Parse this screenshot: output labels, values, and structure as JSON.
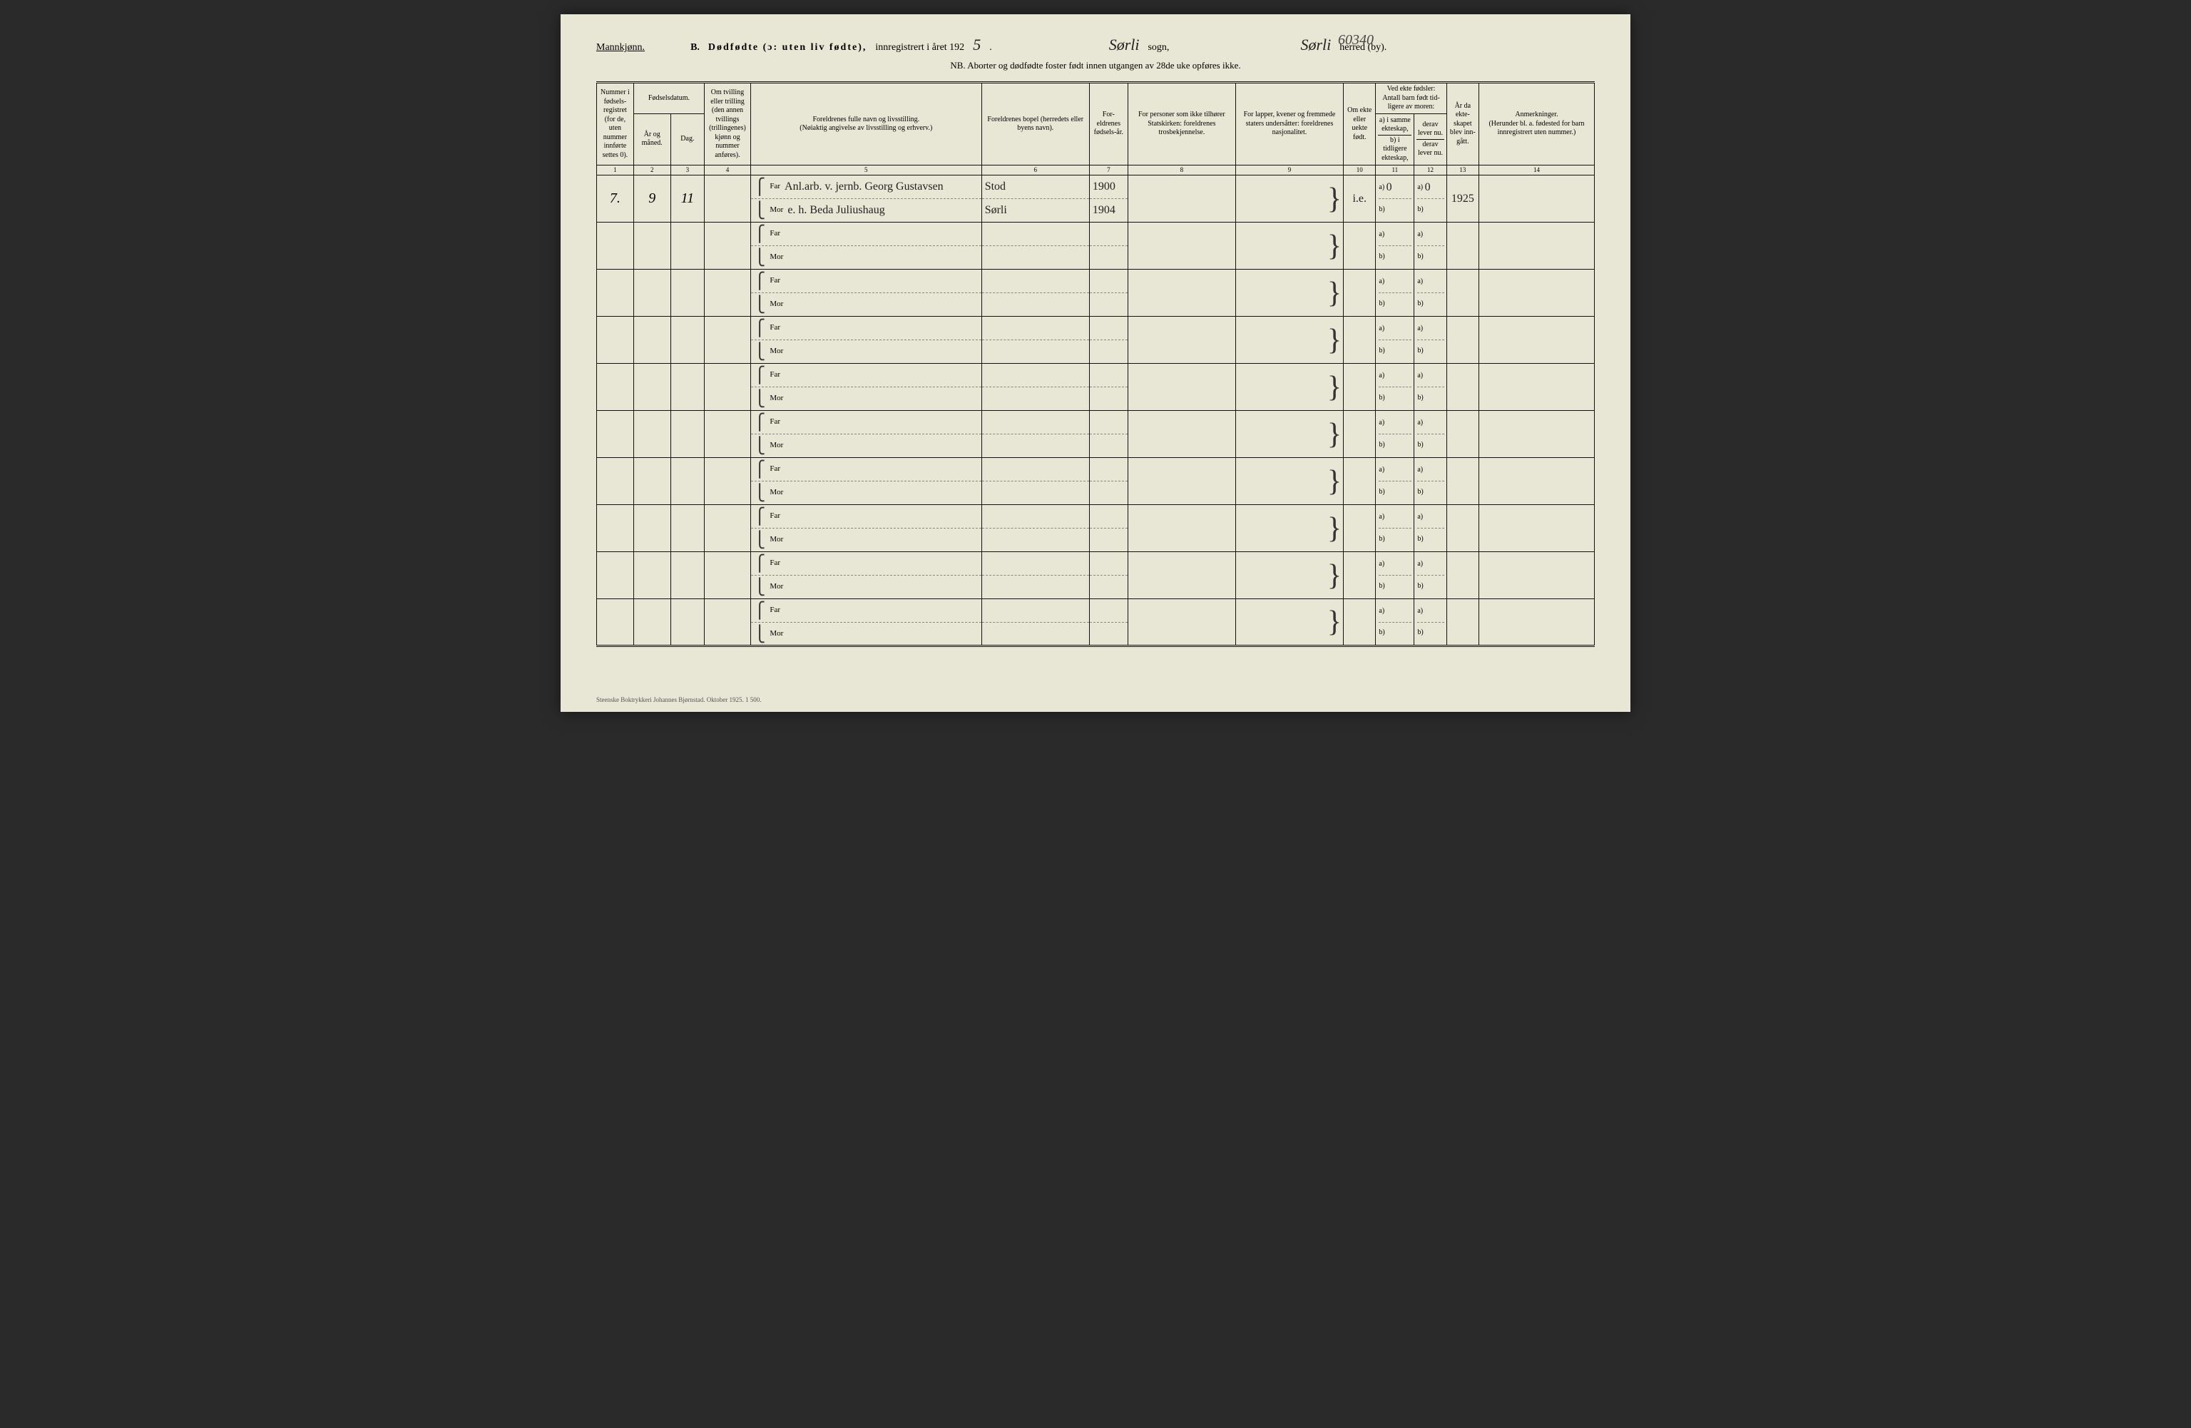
{
  "header": {
    "gender": "Mannkjønn.",
    "section_letter": "B.",
    "title_main": "Dødfødte (ɔ: uten liv fødte),",
    "title_tail": "innregistrert i året 192",
    "year_digit": "5",
    "period": ".",
    "sogn_value": "Sørli",
    "sogn_label": "sogn,",
    "ref_number": "60340",
    "herred_value": "Sørli",
    "herred_label": "herred (by).",
    "nb": "NB.  Aborter og dødfødte foster født innen utgangen av 28de uke opføres ikke."
  },
  "columns": {
    "c1": "Nummer i fødsels-registret (for de, uten nummer innførte settes 0).",
    "c23_top": "Fødselsdatum.",
    "c2": "År og måned.",
    "c3": "Dag.",
    "c4": "Om tvilling eller trilling (den annen tvillings (trillingenes) kjønn og nummer anføres).",
    "c5": "Foreldrenes fulle navn og livsstilling.\n(Nøiaktig angivelse av livsstilling og erhverv.)",
    "c6": "Foreldrenes bopel (herredets eller byens navn).",
    "c7": "For-eldrenes fødsels-år.",
    "c8": "For personer som ikke tilhører Statskirken: foreldrenes trosbekjennelse.",
    "c9": "For lapper, kvener og fremmede staters undersåtter: foreldrenes nasjonalitet.",
    "c10": "Om ekte eller uekte født.",
    "c1112_top": "Ved ekte fødsler: Antall barn født tid-ligere av moren:",
    "c11a": "a) i samme ekteskap,",
    "c11b": "b) i tidligere ekteskap,",
    "c12a": "derav lever nu.",
    "c12b": "derav lever nu.",
    "c13": "År da ekte-skapet blev inn-gått.",
    "c14": "Anmerkninger.\n(Herunder bl. a. fødested for barn innregistrert uten nummer.)"
  },
  "colnums": [
    "1",
    "2",
    "3",
    "4",
    "5",
    "6",
    "7",
    "8",
    "9",
    "10",
    "11",
    "12",
    "13",
    "14"
  ],
  "labels": {
    "far": "Far",
    "mor": "Mor",
    "a": "a)",
    "b": "b)"
  },
  "row1": {
    "num": "7.",
    "month": "9",
    "day": "11",
    "far_name": "Anl.arb. v. jernb. Georg Gustavsen",
    "mor_name": "e. h. Beda Juliushaug",
    "far_bopel": "Stod",
    "mor_bopel": "Sørli",
    "far_year": "1900",
    "mor_year": "1904",
    "ekte": "i.e.",
    "a_val": "0",
    "a_derav": "0",
    "year_married": "1925"
  },
  "footer": "Steenske Boktrykkeri Johannes Bjørnstad.   Oktober 1925.   1 500."
}
